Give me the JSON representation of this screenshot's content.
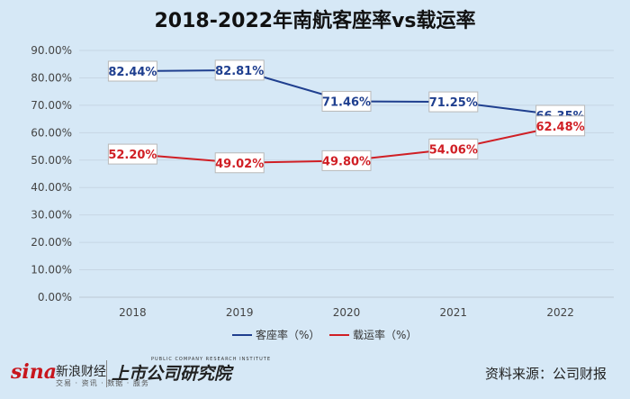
{
  "chart_data": {
    "type": "line",
    "title": "2018-2022年南航客座率vs载运率",
    "categories": [
      "2018",
      "2019",
      "2020",
      "2021",
      "2022"
    ],
    "y_ticks": [
      "0.00%",
      "10.00%",
      "20.00%",
      "30.00%",
      "40.00%",
      "50.00%",
      "60.00%",
      "70.00%",
      "80.00%",
      "90.00%"
    ],
    "ylim": [
      0,
      90
    ],
    "grid": true,
    "legend_position": "bottom",
    "series": [
      {
        "name": "客座率（%）",
        "color": "#1f3f8f",
        "values": [
          82.44,
          82.81,
          71.46,
          71.25,
          66.35
        ],
        "labels": [
          "82.44%",
          "82.81%",
          "71.46%",
          "71.25%",
          "66.35%"
        ],
        "label_position": "above"
      },
      {
        "name": "载运率（%）",
        "color": "#d01f25",
        "values": [
          52.2,
          49.02,
          49.8,
          54.06,
          62.48
        ],
        "labels": [
          "52.20%",
          "49.02%",
          "49.80%",
          "54.06%",
          "62.48%"
        ],
        "label_position": "below"
      }
    ]
  },
  "footer": {
    "sina_logo": "sina",
    "sina_name": "新浪财经",
    "sina_sub": "交易 · 资讯 · 数据 · 服务",
    "institute_name": "上市公司研究院",
    "institute_en": "PUBLIC COMPANY RESEARCH INSTITUTE",
    "source": "资料来源：公司财报"
  }
}
